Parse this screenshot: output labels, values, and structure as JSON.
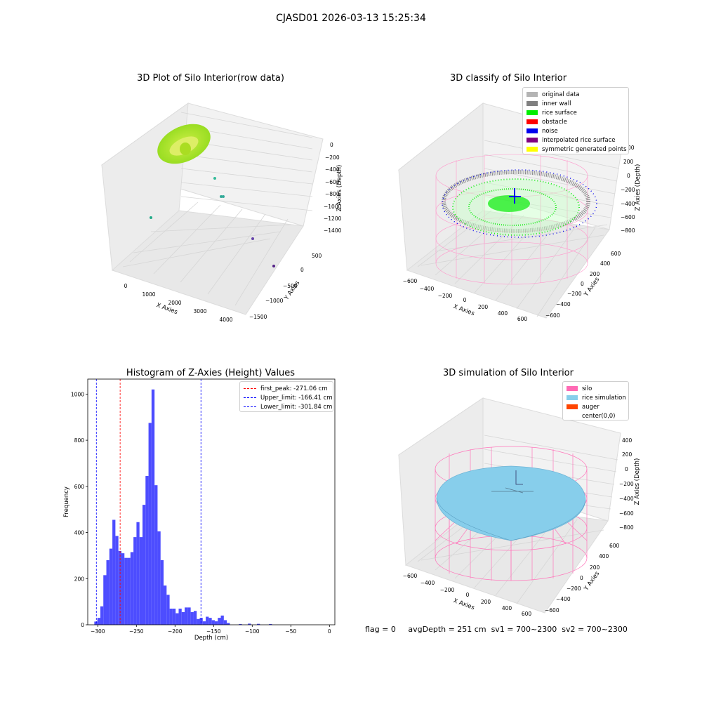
{
  "suptitle": "CJASD01 2026-03-13 15:25:34",
  "panels": {
    "raw": {
      "title": "3D Plot of Silo Interior(row data)",
      "xlabel": "X Axies",
      "ylabel": "Y Axies",
      "zlabel": "Z Axies (Depth)",
      "xticks": [
        "0",
        "1000",
        "2000",
        "3000",
        "4000"
      ],
      "yticks": [
        "500",
        "0",
        "−500",
        "−1000",
        "−1500"
      ],
      "zticks": [
        "0",
        "−200",
        "−400",
        "−600",
        "−800",
        "−1000",
        "−1200",
        "−1400"
      ]
    },
    "classify": {
      "title": "3D classify of Silo Interior",
      "xlabel": "X Axies",
      "ylabel": "Y Axies",
      "zlabel": "Z Axies (Depth)",
      "xticks": [
        "−600",
        "−400",
        "−200",
        "0",
        "200",
        "400",
        "600"
      ],
      "yticks": [
        "600",
        "400",
        "200",
        "0",
        "−200",
        "−400",
        "−600"
      ],
      "zticks": [
        "200",
        "0",
        "−200",
        "−400",
        "−600",
        "−800"
      ],
      "zticks_partial": "00",
      "legend": [
        {
          "label": "original data",
          "color": "#b4b4b4"
        },
        {
          "label": "inner wall",
          "color": "#808080"
        },
        {
          "label": "rice surface",
          "color": "#00ee00"
        },
        {
          "label": "obstacle",
          "color": "#ff0000"
        },
        {
          "label": "noise",
          "color": "#0000ee"
        },
        {
          "label": "interpolated rice surface",
          "color": "#800080"
        },
        {
          "label": "symmetric generated points",
          "color": "#ffff00"
        }
      ]
    },
    "simulation": {
      "title": "3D simulation of Silo Interior",
      "xlabel": "X Axies",
      "ylabel": "Y Axies",
      "zlabel": "Z Axies (Depth)",
      "xticks": [
        "−600",
        "−400",
        "−200",
        "0",
        "200",
        "400",
        "600"
      ],
      "yticks": [
        "600",
        "400",
        "200",
        "0",
        "−200",
        "−400",
        "−600"
      ],
      "zticks": [
        "400",
        "200",
        "0",
        "−200",
        "−400",
        "−600",
        "−800"
      ],
      "legend": [
        {
          "label": "silo",
          "color": "#ff69b4"
        },
        {
          "label": "rice simulation",
          "color": "#87ceeb"
        },
        {
          "label": "auger",
          "color": "#ff4500"
        },
        {
          "label": "center(0,0)",
          "color": "#ffffff"
        }
      ]
    }
  },
  "status": {
    "flag": "flag = 0",
    "avg": "avgDepth = 251 cm",
    "sv1": "sv1 = 700~2300",
    "sv2": "sv2 = 700~2300"
  },
  "chart_data": [
    {
      "type": "scatter",
      "title": "3D Plot of Silo Interior(row data)",
      "xlabel": "X Axies",
      "ylabel": "Y Axies",
      "zlabel": "Z Axies (Depth)",
      "xlim": [
        -400,
        4400
      ],
      "ylim": [
        -1600,
        800
      ],
      "zlim": [
        -1500,
        100
      ],
      "points": [
        {
          "x": 0,
          "y": 0,
          "z": -100,
          "note": "dense ring cluster"
        },
        {
          "x": 150,
          "y": -500,
          "z": -1000
        },
        {
          "x": 1300,
          "y": 0,
          "z": -600
        },
        {
          "x": 1500,
          "y": -50,
          "z": -650
        },
        {
          "x": 3800,
          "y": -900,
          "z": -1300
        },
        {
          "x": 4200,
          "y": -1400,
          "z": -1400
        }
      ]
    },
    {
      "type": "scatter",
      "title": "3D classify of Silo Interior",
      "xlim": [
        -700,
        700
      ],
      "ylim": [
        -700,
        700
      ],
      "zlim": [
        -900,
        300
      ],
      "series": [
        "original data",
        "inner wall",
        "rice surface",
        "obstacle",
        "noise",
        "interpolated rice surface",
        "symmetric generated points"
      ]
    },
    {
      "type": "bar",
      "title": "Histogram of Z-Axies (Height) Values",
      "xlabel": "Depth (cm)",
      "ylabel": "Frequency",
      "xlim": [
        -313,
        7
      ],
      "ylim": [
        0,
        1065
      ],
      "xticks": [
        -300,
        -250,
        -200,
        -150,
        -100,
        -50,
        0
      ],
      "yticks": [
        0,
        200,
        400,
        600,
        800,
        1000
      ],
      "bin_width": 3.9,
      "bins": [
        [
          -304.5,
          14
        ],
        [
          -300.6,
          30
        ],
        [
          -296.7,
          80
        ],
        [
          -292.8,
          215
        ],
        [
          -288.9,
          280
        ],
        [
          -285.0,
          330
        ],
        [
          -281.1,
          455
        ],
        [
          -277.2,
          385
        ],
        [
          -273.3,
          320
        ],
        [
          -269.4,
          310
        ],
        [
          -265.5,
          290
        ],
        [
          -261.6,
          290
        ],
        [
          -257.7,
          315
        ],
        [
          -253.8,
          380
        ],
        [
          -249.9,
          445
        ],
        [
          -246.0,
          380
        ],
        [
          -242.1,
          520
        ],
        [
          -238.2,
          645
        ],
        [
          -234.3,
          875
        ],
        [
          -230.4,
          1020
        ],
        [
          -226.5,
          605
        ],
        [
          -222.6,
          405
        ],
        [
          -218.7,
          280
        ],
        [
          -214.8,
          170
        ],
        [
          -210.9,
          130
        ],
        [
          -207.0,
          70
        ],
        [
          -203.1,
          70
        ],
        [
          -199.2,
          50
        ],
        [
          -195.3,
          70
        ],
        [
          -191.4,
          55
        ],
        [
          -187.5,
          75
        ],
        [
          -183.6,
          75
        ],
        [
          -179.7,
          55
        ],
        [
          -175.8,
          60
        ],
        [
          -171.9,
          25
        ],
        [
          -168.0,
          30
        ],
        [
          -164.1,
          15
        ],
        [
          -160.2,
          35
        ],
        [
          -156.3,
          30
        ],
        [
          -152.4,
          20
        ],
        [
          -148.5,
          15
        ],
        [
          -144.6,
          30
        ],
        [
          -140.7,
          40
        ],
        [
          -136.8,
          20
        ],
        [
          -132.9,
          8
        ],
        [
          -129.0,
          0
        ],
        [
          -125.1,
          0
        ],
        [
          -121.2,
          0
        ],
        [
          -117.3,
          3
        ],
        [
          -113.4,
          0
        ],
        [
          -109.5,
          0
        ],
        [
          -105.6,
          5
        ],
        [
          -101.7,
          0
        ],
        [
          -97.8,
          0
        ],
        [
          -93.9,
          4
        ],
        [
          -90.0,
          0
        ],
        [
          -86.1,
          0
        ],
        [
          -82.2,
          0
        ],
        [
          -78.3,
          3
        ]
      ],
      "vlines": [
        {
          "label": "first_peak: -271.06 cm",
          "x": -271.06,
          "color": "#ff0000"
        },
        {
          "label": "Upper_limit: -166.41 cm",
          "x": -166.41,
          "color": "#0000ff"
        },
        {
          "label": "Lower_limit: -301.84 cm",
          "x": -301.84,
          "color": "#0000ff"
        }
      ],
      "bar_color": "#4d4dff"
    },
    {
      "type": "scatter",
      "title": "3D simulation of Silo Interior",
      "xlim": [
        -700,
        700
      ],
      "ylim": [
        -700,
        700
      ],
      "zlim": [
        -900,
        500
      ],
      "series": [
        "silo",
        "rice simulation",
        "auger",
        "center(0,0)"
      ]
    }
  ],
  "histogram_meta": {
    "title": "Histogram of Z-Axies (Height) Values"
  }
}
